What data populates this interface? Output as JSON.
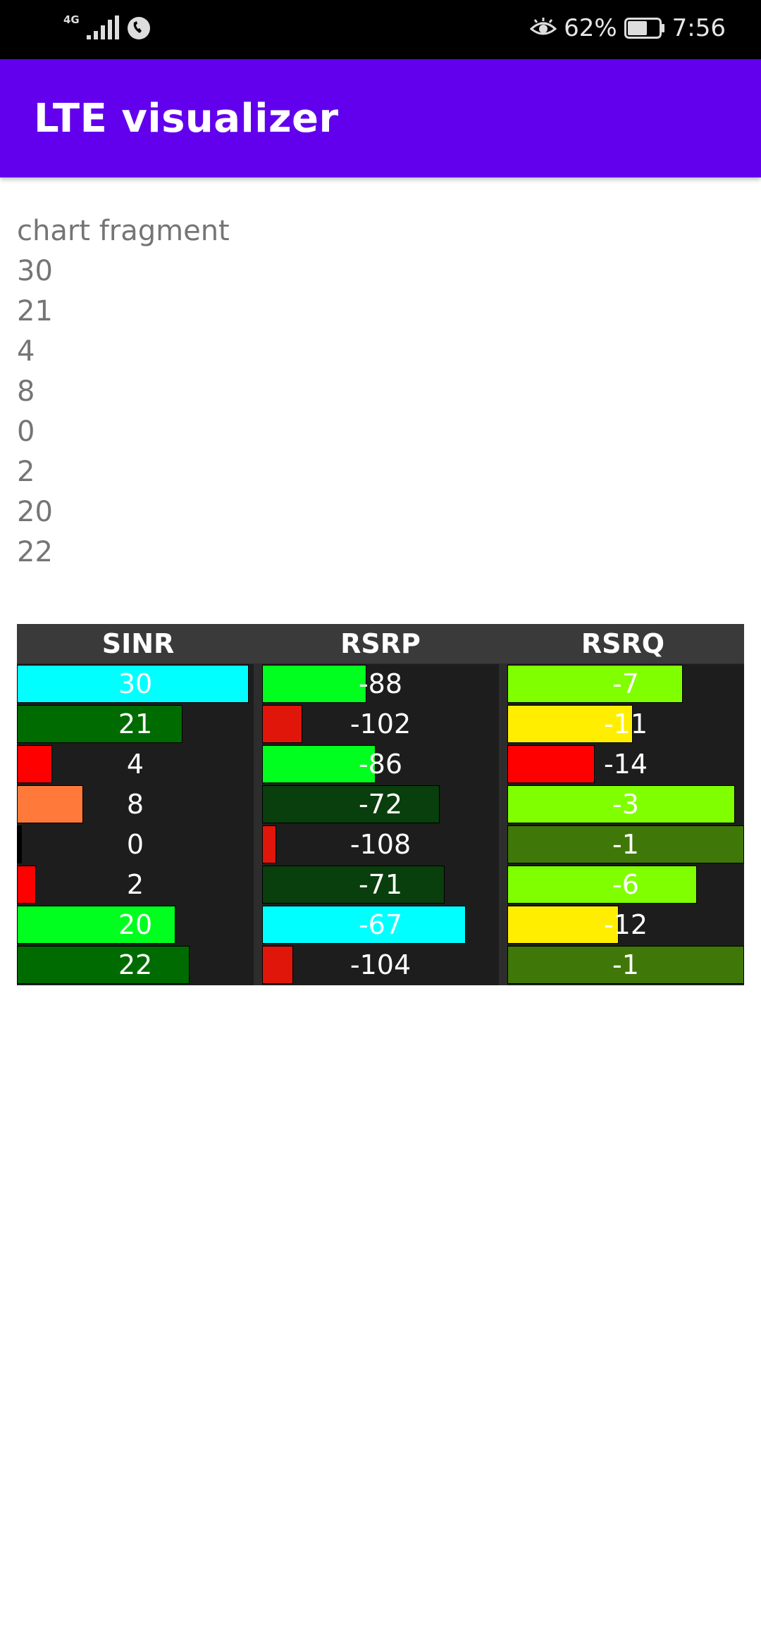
{
  "status_bar": {
    "network_type": "4G",
    "battery_percent": "62%",
    "battery_level": 0.62,
    "time": "7:56"
  },
  "app_bar": {
    "title": "LTE visualizer"
  },
  "fragment": {
    "label": "chart fragment",
    "values": [
      "30",
      "21",
      "4",
      "8",
      "0",
      "2",
      "20",
      "22"
    ]
  },
  "table": {
    "columns": [
      "SINR",
      "RSRP",
      "RSRQ"
    ],
    "sinr": {
      "values": [
        30,
        21,
        4,
        8,
        0,
        2,
        20,
        22
      ],
      "colors": [
        "#00ffff",
        "#006b00",
        "#ff0000",
        "#ff7a3a",
        "#000000",
        "#ff0000",
        "#00ff1e",
        "#006b00"
      ],
      "fill": [
        0.98,
        0.7,
        0.15,
        0.28,
        0.02,
        0.08,
        0.67,
        0.73
      ]
    },
    "rsrp": {
      "values": [
        -88,
        -102,
        -86,
        -72,
        -108,
        -71,
        -67,
        -104
      ],
      "colors": [
        "#00ff1e",
        "#e0160a",
        "#00ff1e",
        "#093e0d",
        "#e0160a",
        "#093e0d",
        "#00ffff",
        "#e0160a"
      ],
      "fill": [
        0.44,
        0.17,
        0.48,
        0.75,
        0.06,
        0.77,
        0.86,
        0.13
      ]
    },
    "rsrq": {
      "values": [
        -7,
        -11,
        -14,
        -3,
        -1,
        -6,
        -12,
        -1
      ],
      "colors": [
        "#80ff00",
        "#ffee00",
        "#ff0000",
        "#80ff00",
        "#3f7808",
        "#80ff00",
        "#ffee00",
        "#3f7808"
      ],
      "fill": [
        0.74,
        0.53,
        0.37,
        0.96,
        1.0,
        0.8,
        0.47,
        1.0
      ]
    }
  }
}
